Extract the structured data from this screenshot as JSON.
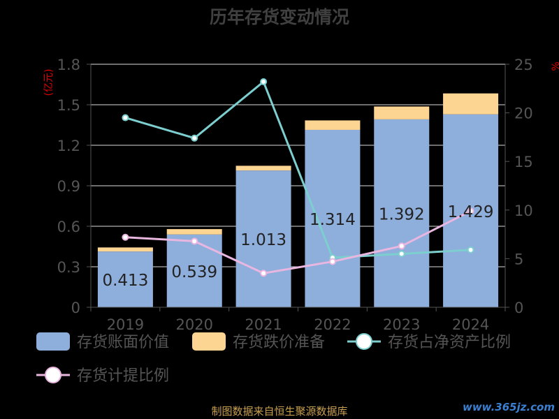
{
  "chart_data": {
    "type": "bar",
    "title": "历年存货变动情况",
    "y_left_unit": "(亿元)",
    "y_right_unit": "%",
    "categories": [
      "2019",
      "2020",
      "2021",
      "2022",
      "2023",
      "2024"
    ],
    "y_left_ticks": [
      "0",
      "0.3",
      "0.6",
      "0.9",
      "1.2",
      "1.5",
      "1.8"
    ],
    "y_right_ticks": [
      "0",
      "5",
      "10",
      "15",
      "20",
      "25"
    ],
    "ylim_left": [
      0,
      1.8
    ],
    "ylim_right": [
      0,
      25
    ],
    "bar_series": [
      {
        "name": "存货账面价值",
        "color": "#8eaedc",
        "values": [
          0.413,
          0.539,
          1.013,
          1.314,
          1.392,
          1.429
        ],
        "labels": [
          "0.413",
          "0.539",
          "1.013",
          "1.314",
          "1.392",
          "1.429"
        ]
      },
      {
        "name": "存货跌价准备",
        "color": "#fdd593",
        "values": [
          0.03,
          0.04,
          0.035,
          0.07,
          0.095,
          0.155
        ]
      }
    ],
    "line_series": [
      {
        "name": "存货占净资产比例",
        "color": "#7dcfcf",
        "values": [
          19.5,
          17.4,
          23.2,
          5.1,
          5.5,
          5.9
        ]
      },
      {
        "name": "存货计提比例",
        "color": "#e9b6e0",
        "values": [
          7.2,
          6.8,
          3.5,
          4.7,
          6.3,
          9.9
        ]
      }
    ],
    "grid": true
  },
  "footer": {
    "source": "制图数据来自恒生聚源数据库",
    "watermark": "www.365jz.com"
  }
}
